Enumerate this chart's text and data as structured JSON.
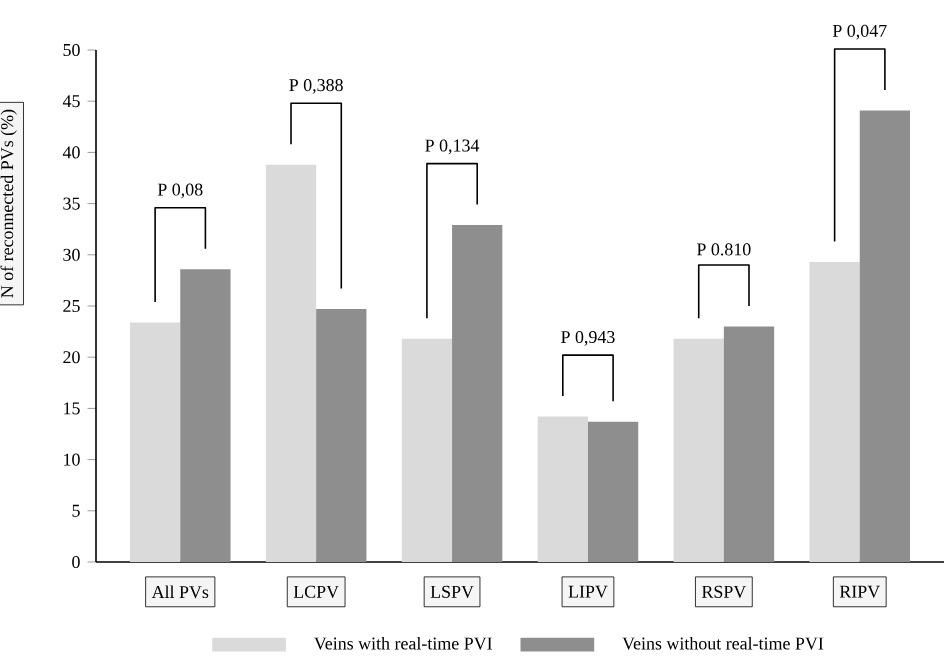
{
  "chart_data": {
    "type": "bar",
    "ylabel": "N of reconnected PVs (%)",
    "categories": [
      "All PVs",
      "LCPV",
      "LSPV",
      "LIPV",
      "RSPV",
      "RIPV"
    ],
    "series": [
      {
        "name": "Veins with real-time PVI",
        "color": "#dadada",
        "values": [
          23.4,
          38.8,
          21.8,
          14.2,
          21.8,
          29.3
        ]
      },
      {
        "name": "Veins without real-time PVI",
        "color": "#8e8e8e",
        "values": [
          28.6,
          24.7,
          32.9,
          13.7,
          23.0,
          44.1
        ]
      }
    ],
    "ylim": [
      0,
      50
    ],
    "yticks": [
      0,
      5,
      10,
      15,
      20,
      25,
      30,
      35,
      40,
      45,
      50
    ],
    "annotations": [
      "P 0,08",
      "P 0,388",
      "P 0,134",
      "P 0,943",
      "P 0.810",
      "P 0,047"
    ],
    "legend": "bottom",
    "grid": false
  }
}
